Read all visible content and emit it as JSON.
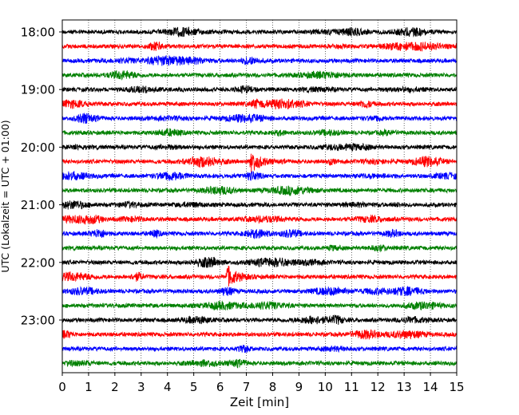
{
  "chart_data": {
    "type": "line",
    "title": "",
    "xlabel": "Zeit  [min]",
    "ylabel": "UTC (Lokalzeit = UTC + 01:00)",
    "xlim": [
      0,
      15
    ],
    "x_ticks": [
      0,
      1,
      2,
      3,
      4,
      5,
      6,
      7,
      8,
      9,
      10,
      11,
      12,
      13,
      14,
      15
    ],
    "y_ticks": [
      "18:00",
      "19:00",
      "20:00",
      "21:00",
      "22:00",
      "23:00"
    ],
    "y_tick_traces": [
      0,
      4,
      8,
      12,
      16,
      20
    ],
    "trace_count": 24,
    "trace_interval_min": 15,
    "start_utc": "18:00",
    "color_cycle": [
      "#000000",
      "#ff0000",
      "#0000ff",
      "#008000"
    ],
    "grid": {
      "vertical_dotted": true
    },
    "events": [
      {
        "trace_start": "20:15",
        "minute": 7.2,
        "amplitude": "high"
      },
      {
        "trace_start": "20:15",
        "minute": 10.2,
        "amplitude": "low"
      },
      {
        "trace_start": "22:15",
        "minute": 6.3,
        "amplitude": "high"
      }
    ]
  }
}
